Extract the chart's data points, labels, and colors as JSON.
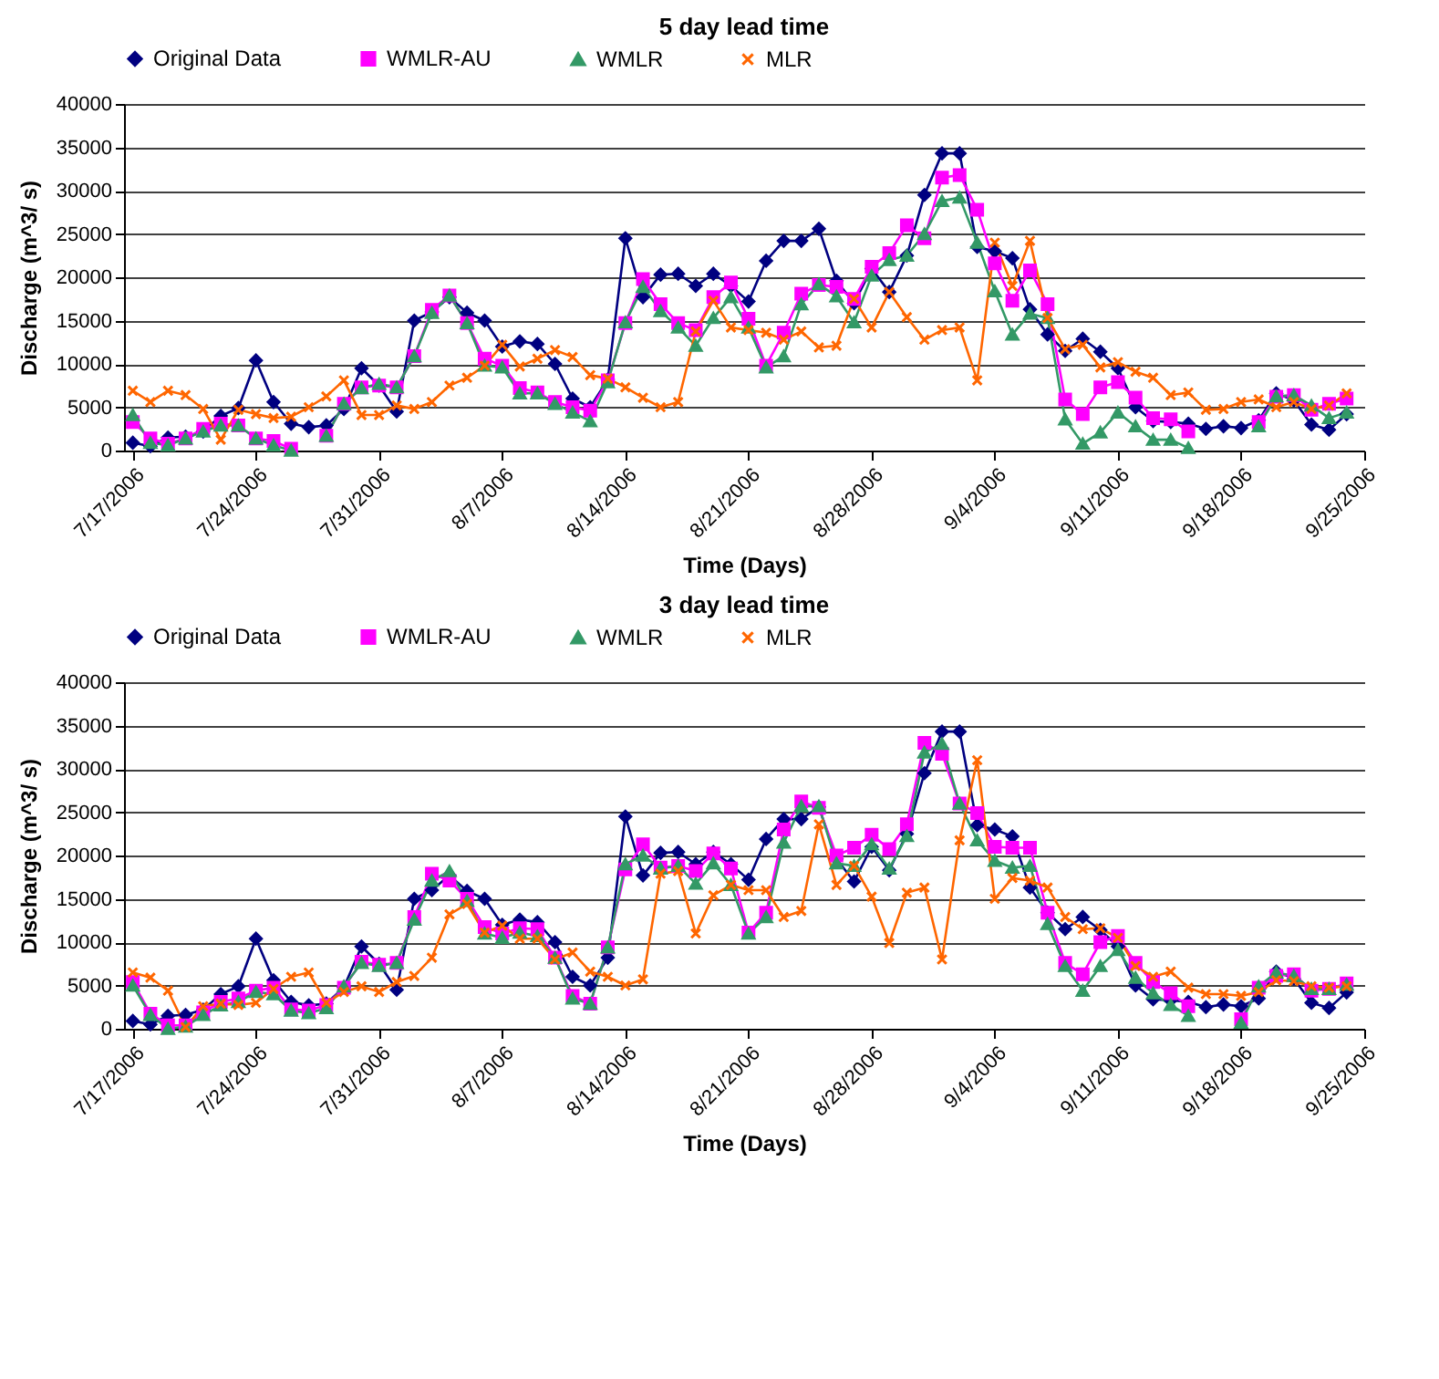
{
  "chart_data": [
    {
      "type": "line",
      "title": "5 day lead time",
      "xlabel": "Time (Days)",
      "ylabel": "Discharge (m^3/ s)",
      "x": [
        "2006-07-17",
        "2006-07-18",
        "2006-07-19",
        "2006-07-20",
        "2006-07-21",
        "2006-07-22",
        "2006-07-23",
        "2006-07-24",
        "2006-07-25",
        "2006-07-26",
        "2006-07-27",
        "2006-07-28",
        "2006-07-29",
        "2006-07-30",
        "2006-07-31",
        "2006-08-01",
        "2006-08-02",
        "2006-08-03",
        "2006-08-04",
        "2006-08-05",
        "2006-08-06",
        "2006-08-07",
        "2006-08-08",
        "2006-08-09",
        "2006-08-10",
        "2006-08-11",
        "2006-08-12",
        "2006-08-13",
        "2006-08-14",
        "2006-08-15",
        "2006-08-16",
        "2006-08-17",
        "2006-08-18",
        "2006-08-19",
        "2006-08-20",
        "2006-08-21",
        "2006-08-22",
        "2006-08-23",
        "2006-08-24",
        "2006-08-25",
        "2006-08-26",
        "2006-08-27",
        "2006-08-28",
        "2006-08-29",
        "2006-08-30",
        "2006-08-31",
        "2006-09-01",
        "2006-09-02",
        "2006-09-03",
        "2006-09-04",
        "2006-09-05",
        "2006-09-06",
        "2006-09-07",
        "2006-09-08",
        "2006-09-09",
        "2006-09-10",
        "2006-09-11",
        "2006-09-12",
        "2006-09-13",
        "2006-09-14",
        "2006-09-15",
        "2006-09-16",
        "2006-09-17",
        "2006-09-18",
        "2006-09-19",
        "2006-09-20",
        "2006-09-21",
        "2006-09-22",
        "2006-09-23",
        "2006-09-24"
      ],
      "xlim": [
        "2006-07-16T12:00",
        "2006-09-25"
      ],
      "xticks": [
        {
          "value": "2006-07-17",
          "label": "7/17/2006"
        },
        {
          "value": "2006-07-24",
          "label": "7/24/2006"
        },
        {
          "value": "2006-07-31",
          "label": "7/31/2006"
        },
        {
          "value": "2006-08-07",
          "label": "8/7/2006"
        },
        {
          "value": "2006-08-14",
          "label": "8/14/2006"
        },
        {
          "value": "2006-08-21",
          "label": "8/21/2006"
        },
        {
          "value": "2006-08-28",
          "label": "8/28/2006"
        },
        {
          "value": "2006-09-04",
          "label": "9/4/2006"
        },
        {
          "value": "2006-09-11",
          "label": "9/11/2006"
        },
        {
          "value": "2006-09-18",
          "label": "9/18/2006"
        },
        {
          "value": "2006-09-25",
          "label": "9/25/2006"
        }
      ],
      "ylim": [
        0,
        40000
      ],
      "yticks": [
        0,
        5000,
        10000,
        15000,
        20000,
        25000,
        30000,
        35000,
        40000
      ],
      "grid": "y",
      "legend": "top",
      "series": [
        {
          "name": "Original Data",
          "color": "#000080",
          "marker": "diamond",
          "values": [
            900,
            500,
            1500,
            1600,
            2200,
            4000,
            4900,
            10400,
            5600,
            3100,
            2700,
            2900,
            4800,
            9500,
            7500,
            4500,
            15000,
            16000,
            17700,
            15900,
            15000,
            12000,
            12600,
            12300,
            10000,
            6000,
            5000,
            8200,
            24500,
            17700,
            20300,
            20400,
            19000,
            20400,
            19000,
            17200,
            21900,
            24200,
            24200,
            25600,
            19600,
            17000,
            21000,
            18300,
            22500,
            29500,
            34300,
            34300,
            23500,
            23000,
            22200,
            16300,
            13400,
            11500,
            12900,
            11400,
            9500,
            5000,
            3400,
            3300,
            3100,
            2500,
            2800,
            2600,
            3500,
            6600,
            5800,
            3000,
            2400,
            4200
          ]
        },
        {
          "name": "WMLR-AU",
          "color": "#ff00ff",
          "marker": "square",
          "values": [
            3300,
            1400,
            800,
            1400,
            2500,
            3100,
            2900,
            1400,
            1100,
            200,
            null,
            1700,
            5400,
            7300,
            7500,
            7300,
            10900,
            16250,
            17900,
            14700,
            10600,
            9800,
            7200,
            6700,
            5600,
            5000,
            4600,
            8100,
            14700,
            19800,
            16900,
            14700,
            13900,
            17700,
            19400,
            15200,
            9800,
            13600,
            18100,
            19100,
            18900,
            17500,
            21200,
            22800,
            26000,
            24500,
            31500,
            31800,
            27800,
            21600,
            17300,
            20800,
            16900,
            5900,
            4200,
            7300,
            7900,
            6100,
            3750,
            3600,
            2200,
            null,
            null,
            null,
            3300,
            6200,
            6400,
            4700,
            5400,
            6000
          ]
        },
        {
          "name": "WMLR",
          "color": "#339966",
          "marker": "triangle",
          "values": [
            4100,
            900,
            600,
            1400,
            2200,
            2900,
            2900,
            1400,
            600,
            0,
            null,
            1700,
            5400,
            7200,
            7700,
            7300,
            10900,
            15900,
            17900,
            14700,
            9800,
            9600,
            6600,
            6600,
            5400,
            4400,
            3400,
            7900,
            14800,
            18900,
            16100,
            14200,
            12100,
            15300,
            17700,
            14200,
            9600,
            10900,
            16900,
            19200,
            17800,
            14800,
            20200,
            22000,
            22500,
            25000,
            28800,
            29200,
            24000,
            18400,
            13400,
            15800,
            15300,
            3600,
            800,
            2100,
            4400,
            2800,
            1250,
            1250,
            300,
            null,
            null,
            null,
            2800,
            6250,
            6400,
            5200,
            3750,
            4400
          ]
        },
        {
          "name": "MLR",
          "color": "#ff6600",
          "marker": "cross",
          "values": [
            6900,
            5600,
            6900,
            6400,
            4800,
            1250,
            4700,
            4200,
            3750,
            3900,
            5000,
            6250,
            8100,
            4100,
            4100,
            5200,
            4800,
            5600,
            7500,
            8400,
            9800,
            12200,
            9700,
            10600,
            11600,
            10800,
            8700,
            8300,
            7300,
            6100,
            5000,
            5600,
            13750,
            17300,
            14200,
            13900,
            13600,
            12800,
            13750,
            11900,
            12100,
            17500,
            14200,
            18300,
            15400,
            12800,
            13900,
            14200,
            8100,
            24000,
            19000,
            24200,
            15300,
            11700,
            12200,
            9600,
            10200,
            9100,
            8400,
            6400,
            6700,
            4700,
            4800,
            5600,
            5900,
            5000,
            5600,
            4800,
            5200,
            6600
          ]
        }
      ]
    },
    {
      "type": "line",
      "title": "3 day lead time",
      "xlabel": "Time (Days)",
      "ylabel": "Discharge (m^3/ s)",
      "x": [
        "2006-07-17",
        "2006-07-18",
        "2006-07-19",
        "2006-07-20",
        "2006-07-21",
        "2006-07-22",
        "2006-07-23",
        "2006-07-24",
        "2006-07-25",
        "2006-07-26",
        "2006-07-27",
        "2006-07-28",
        "2006-07-29",
        "2006-07-30",
        "2006-07-31",
        "2006-08-01",
        "2006-08-02",
        "2006-08-03",
        "2006-08-04",
        "2006-08-05",
        "2006-08-06",
        "2006-08-07",
        "2006-08-08",
        "2006-08-09",
        "2006-08-10",
        "2006-08-11",
        "2006-08-12",
        "2006-08-13",
        "2006-08-14",
        "2006-08-15",
        "2006-08-16",
        "2006-08-17",
        "2006-08-18",
        "2006-08-19",
        "2006-08-20",
        "2006-08-21",
        "2006-08-22",
        "2006-08-23",
        "2006-08-24",
        "2006-08-25",
        "2006-08-26",
        "2006-08-27",
        "2006-08-28",
        "2006-08-29",
        "2006-08-30",
        "2006-08-31",
        "2006-09-01",
        "2006-09-02",
        "2006-09-03",
        "2006-09-04",
        "2006-09-05",
        "2006-09-06",
        "2006-09-07",
        "2006-09-08",
        "2006-09-09",
        "2006-09-10",
        "2006-09-11",
        "2006-09-12",
        "2006-09-13",
        "2006-09-14",
        "2006-09-15",
        "2006-09-16",
        "2006-09-17",
        "2006-09-18",
        "2006-09-19",
        "2006-09-20",
        "2006-09-21",
        "2006-09-22",
        "2006-09-23",
        "2006-09-24"
      ],
      "xlim": [
        "2006-07-16T12:00",
        "2006-09-25"
      ],
      "xticks": [
        {
          "value": "2006-07-17",
          "label": "7/17/2006"
        },
        {
          "value": "2006-07-24",
          "label": "7/24/2006"
        },
        {
          "value": "2006-07-31",
          "label": "7/31/2006"
        },
        {
          "value": "2006-08-07",
          "label": "8/7/2006"
        },
        {
          "value": "2006-08-14",
          "label": "8/14/2006"
        },
        {
          "value": "2006-08-21",
          "label": "8/21/2006"
        },
        {
          "value": "2006-08-28",
          "label": "8/28/2006"
        },
        {
          "value": "2006-09-04",
          "label": "9/4/2006"
        },
        {
          "value": "2006-09-11",
          "label": "9/11/2006"
        },
        {
          "value": "2006-09-18",
          "label": "9/18/2006"
        },
        {
          "value": "2006-09-25",
          "label": "9/25/2006"
        }
      ],
      "ylim": [
        0,
        40000
      ],
      "yticks": [
        0,
        5000,
        10000,
        15000,
        20000,
        25000,
        30000,
        35000,
        40000
      ],
      "grid": "y",
      "legend": "top",
      "series": [
        {
          "name": "Original Data",
          "color": "#000080",
          "marker": "diamond",
          "values": [
            900,
            500,
            1500,
            1600,
            2200,
            4000,
            4900,
            10400,
            5600,
            3100,
            2700,
            2900,
            4800,
            9500,
            7500,
            4500,
            15000,
            16000,
            17700,
            15900,
            15000,
            12000,
            12600,
            12300,
            10000,
            6000,
            5000,
            8200,
            24500,
            17700,
            20300,
            20400,
            19000,
            20400,
            19000,
            17200,
            21900,
            24200,
            24200,
            25600,
            19600,
            17000,
            21000,
            18300,
            22500,
            29500,
            34300,
            34300,
            23500,
            23000,
            22200,
            16300,
            13400,
            11500,
            12900,
            11400,
            9500,
            5000,
            3400,
            3300,
            3100,
            2500,
            2800,
            2600,
            3500,
            6600,
            5800,
            3000,
            2400,
            4200
          ]
        },
        {
          "name": "WMLR-AU",
          "color": "#ff00ff",
          "marker": "square",
          "values": [
            5400,
            1750,
            400,
            400,
            1900,
            3100,
            3500,
            4400,
            4750,
            2250,
            2100,
            2750,
            4750,
            7750,
            7400,
            7600,
            12900,
            17900,
            17100,
            15000,
            11750,
            11000,
            11600,
            11500,
            8200,
            3800,
            2900,
            9400,
            18400,
            21300,
            18600,
            18800,
            18200,
            20250,
            18500,
            11100,
            13400,
            23000,
            26250,
            25500,
            20000,
            20900,
            22400,
            20750,
            23600,
            33000,
            31750,
            26000,
            24900,
            21000,
            20900,
            20900,
            13400,
            7600,
            6300,
            10000,
            10700,
            7600,
            5400,
            4100,
            2600,
            null,
            null,
            1100,
            4750,
            6100,
            6300,
            4400,
            4600,
            5250
          ]
        },
        {
          "name": "WMLR",
          "color": "#339966",
          "marker": "triangle",
          "values": [
            5000,
            1600,
            0,
            250,
            1600,
            2700,
            3100,
            4250,
            4000,
            2100,
            1800,
            2400,
            4900,
            7600,
            7250,
            7600,
            12600,
            17100,
            18200,
            14750,
            11000,
            10500,
            11100,
            10700,
            8200,
            3500,
            2900,
            9400,
            19000,
            20000,
            18500,
            18800,
            16750,
            19100,
            16600,
            11000,
            12900,
            21500,
            25700,
            25700,
            19100,
            18800,
            21300,
            18500,
            22250,
            31900,
            32900,
            26000,
            21750,
            19400,
            18600,
            18800,
            12100,
            7250,
            4400,
            7250,
            9100,
            5900,
            4100,
            2750,
            1500,
            null,
            null,
            700,
            4900,
            6500,
            6100,
            4600,
            4600,
            5100
          ]
        },
        {
          "name": "MLR",
          "color": "#ff6600",
          "marker": "cross",
          "values": [
            6500,
            5900,
            4400,
            200,
            2600,
            2900,
            2750,
            3000,
            4600,
            6000,
            6500,
            3000,
            4250,
            4900,
            4250,
            5400,
            6100,
            8200,
            13200,
            14400,
            11100,
            11900,
            10400,
            10400,
            8000,
            8800,
            6600,
            6000,
            5000,
            5700,
            17900,
            18200,
            11000,
            15400,
            16600,
            16000,
            16000,
            12900,
            13600,
            23600,
            16600,
            18800,
            15250,
            9900,
            15700,
            16300,
            8000,
            21750,
            31000,
            15000,
            17400,
            17100,
            16300,
            12900,
            11500,
            11600,
            10500,
            7250,
            6000,
            6600,
            4750,
            4000,
            4000,
            3800,
            4250,
            5600,
            5500,
            4900,
            4750,
            4900
          ]
        }
      ]
    }
  ]
}
